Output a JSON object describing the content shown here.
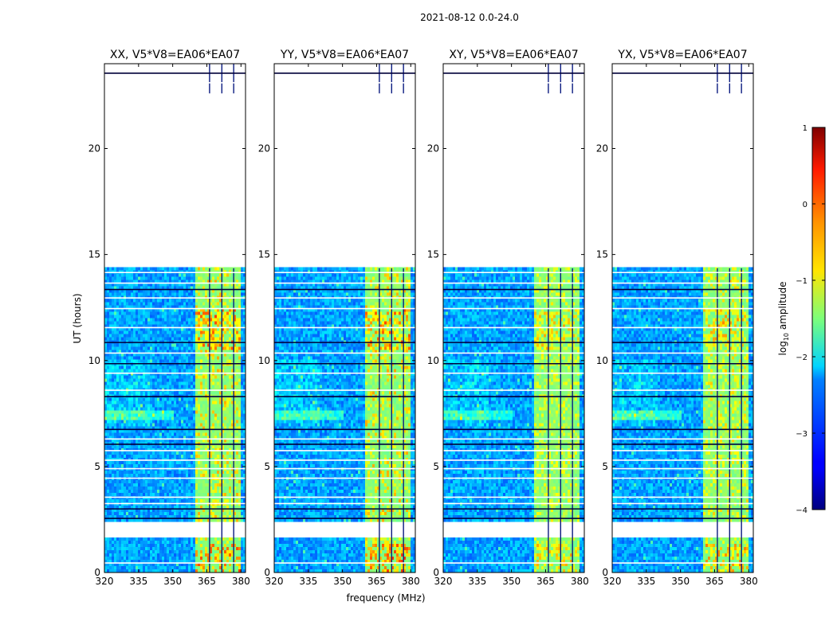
{
  "chart_data": {
    "type": "heatmap",
    "suptitle": "2021-08-12 0.0-24.0",
    "xlabel": "frequency (MHz)",
    "ylabel": "UT (hours)",
    "xlim": [
      320,
      382
    ],
    "ylim": [
      0,
      24
    ],
    "xticks": [
      "320",
      "335",
      "350",
      "365",
      "380"
    ],
    "xtick_values": [
      320,
      335,
      350,
      365,
      380
    ],
    "yticks": [
      "0",
      "5",
      "10",
      "15",
      "20"
    ],
    "ytick_values": [
      0,
      5,
      10,
      15,
      20
    ],
    "panels": [
      {
        "title": "XX, V5*V8=EA06*EA07",
        "strength": 1.0
      },
      {
        "title": "YY, V5*V8=EA06*EA07",
        "strength": 1.0
      },
      {
        "title": "XY, V5*V8=EA06*EA07",
        "strength": 0.6
      },
      {
        "title": "YX, V5*V8=EA06*EA07",
        "strength": 0.75
      }
    ],
    "data_gaps_hours": [
      [
        22.6,
        24.0
      ],
      [
        14.35,
        22.6
      ],
      [
        1.6,
        2.4
      ]
    ],
    "rfi_band_mhz": [
      359.5,
      379.5
    ],
    "colorbar": {
      "label": "log10 amplitude",
      "label_main": "log",
      "label_sub": "10",
      "label_rest": " amplitude",
      "range": [
        -4,
        1
      ],
      "ticks": [
        "1",
        "0",
        "−1",
        "−2",
        "−3",
        "−4"
      ],
      "tick_values": [
        1,
        0,
        -1,
        -2,
        -3,
        -4
      ],
      "colormap": "jet"
    }
  }
}
